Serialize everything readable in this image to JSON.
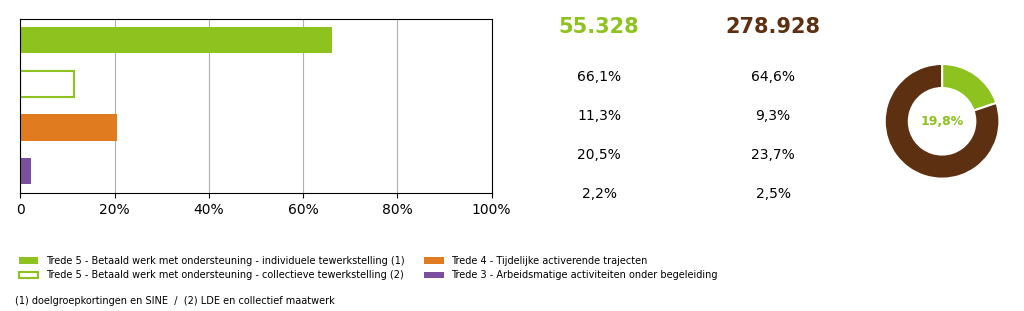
{
  "chart_data": [
    {
      "type": "bar",
      "orientation": "horizontal",
      "categories": [
        null,
        null,
        null,
        null
      ],
      "series": [
        {
          "name": "Trede 5 - Betaald werk met ondersteuning - individuele tewerkstelling (1)",
          "color": "#8dc21f",
          "values": [
            66.1,
            null,
            null,
            null
          ]
        },
        {
          "name": "Trede 5 - Betaald werk met ondersteuning - collectieve tewerkstelling (2)",
          "color": "#8dc21f",
          "line_style": "outline",
          "values": [
            null,
            11.3,
            null,
            null
          ]
        },
        {
          "name": "Trede 4 - Tijdelijke activerende trajecten",
          "color": "#e07b20",
          "values": [
            null,
            null,
            20.5,
            null
          ]
        },
        {
          "name": "Trede 3 - Arbeidsmatige activiteiten onder begeleiding",
          "color": "#7b4fa0",
          "values": [
            null,
            null,
            null,
            2.2
          ]
        }
      ],
      "xlim": [
        0,
        100
      ],
      "xticks": [
        0,
        {
          "value": 20,
          "label": "20%"
        },
        {
          "value": 40,
          "label": "40%"
        },
        {
          "value": 60,
          "label": "60%"
        },
        {
          "value": 80,
          "label": "80%"
        },
        {
          "value": 100,
          "label": "100%"
        }
      ],
      "grid": true,
      "legend": "lower left",
      "annotations": [
        "(1) doelgroepkortingen en SINE  /  (2) LDE en collectief maatwerk"
      ]
    },
    {
      "type": "table",
      "categories": [
        null,
        null,
        null,
        null
      ],
      "series": [
        {
          "name": "55.328",
          "color": "#8dc21f",
          "values": [
            66.1,
            11.3,
            20.5,
            2.2
          ],
          "value_labels": [
            "66,1%",
            "11,3%",
            "20,5%",
            "2,2%"
          ]
        },
        {
          "name": "278.928",
          "color": "#5c3010",
          "values": [
            64.6,
            9.3,
            23.7,
            2.5
          ],
          "value_labels": [
            "64,6%",
            "9,3%",
            "23,7%",
            "2,5%"
          ]
        }
      ]
    },
    {
      "type": "pie",
      "categories": [
        null,
        null
      ],
      "values": [
        19.8,
        80.2
      ],
      "value_labels": [
        "19,8%",
        null
      ],
      "colors": [
        "#8dc21f",
        "#5c3010"
      ]
    }
  ]
}
